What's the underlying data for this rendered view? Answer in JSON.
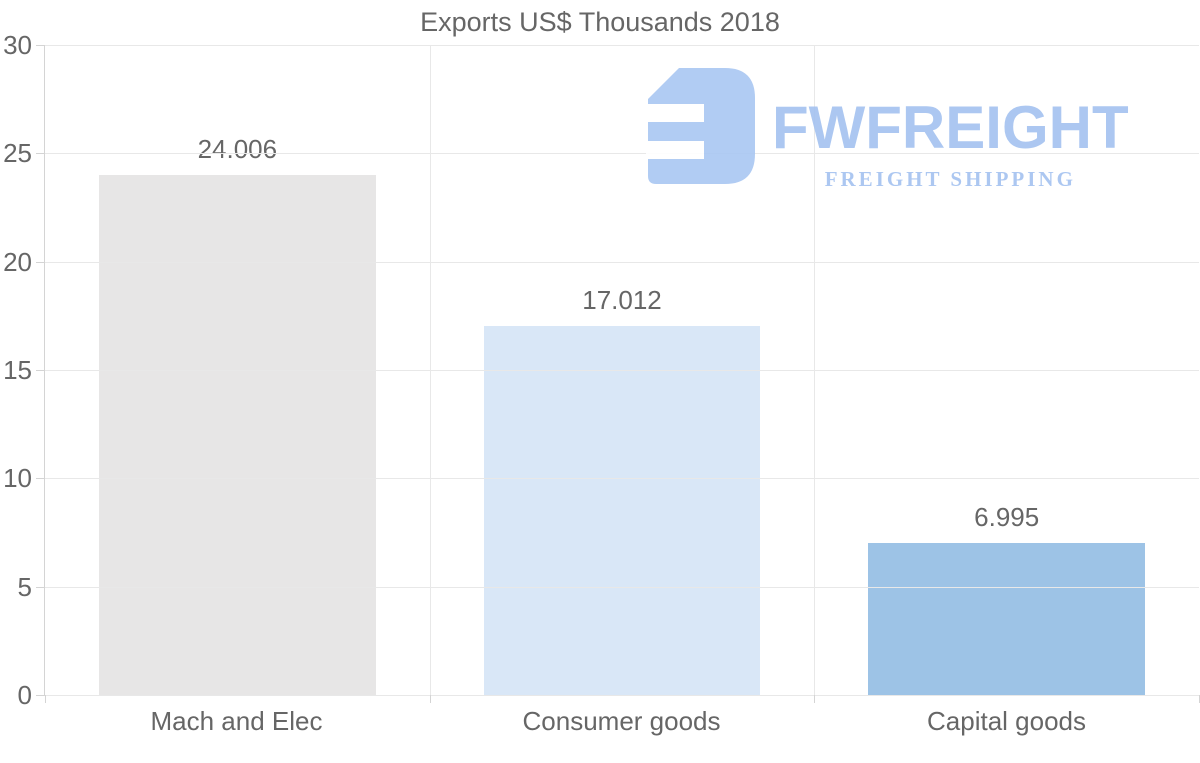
{
  "title": "Exports US$ Thousands 2018",
  "watermark": {
    "brand": "FWFREIGHT",
    "tagline": "FREIGHT SHIPPING",
    "logo_color": "#abc8f2",
    "text_color": "#a5c3f0"
  },
  "chart_data": {
    "type": "bar",
    "title": "Exports US$ Thousands 2018",
    "categories": [
      "Mach and Elec",
      "Consumer goods",
      "Capital goods"
    ],
    "values": [
      24.006,
      17.012,
      6.995
    ],
    "value_labels": [
      "24.006",
      "17.012",
      "6.995"
    ],
    "bar_colors": [
      "#e7e6e6",
      "#d9e7f7",
      "#9dc3e6"
    ],
    "xlabel": "",
    "ylabel": "",
    "ylim": [
      0,
      30
    ],
    "yticks": [
      0,
      5,
      10,
      15,
      20,
      25,
      30
    ],
    "grid": true,
    "legend": "none",
    "text_color": "#666666",
    "grid_color": "#e8e8e8",
    "axis_color": "#d4d4d4"
  }
}
